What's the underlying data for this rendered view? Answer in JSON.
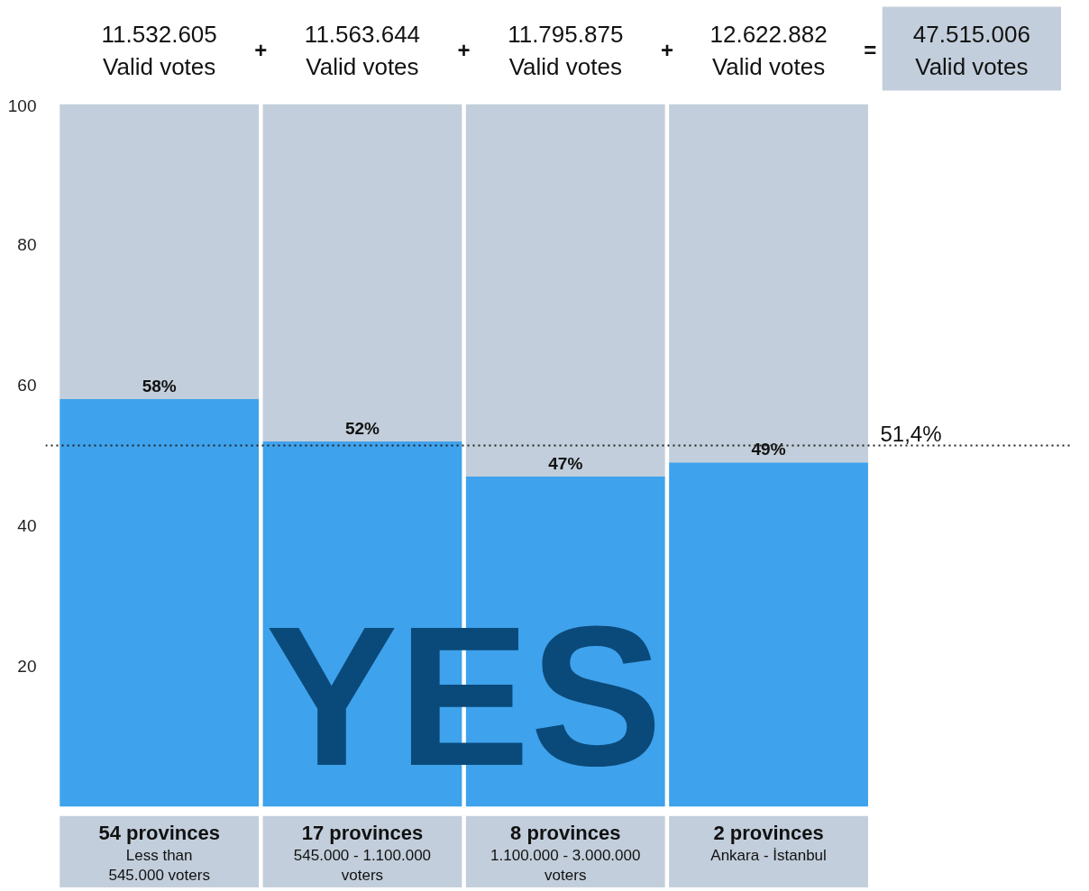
{
  "chart_data": {
    "type": "bar",
    "stacked": true,
    "categories": [
      "54 provinces\nLess than\n545.000 voters",
      "17 provinces\n545.000 - 1.100.000\nvoters",
      "8 provinces\n1.100.000 - 3.000.000\nvoters",
      "2 provinces\nAnkara - İstanbul"
    ],
    "series": [
      {
        "name": "YES",
        "color": "#3fa2ec",
        "values": [
          58,
          52,
          47,
          49
        ],
        "value_labels": [
          "58%",
          "52%",
          "47%",
          "49%"
        ]
      },
      {
        "color": "#c2cedb",
        "values": [
          42,
          48,
          53,
          51
        ]
      }
    ],
    "ylim": [
      0,
      100
    ],
    "yticks": [
      20,
      40,
      60,
      80,
      100
    ],
    "ref_lines": [
      {
        "axis": "y",
        "value": 51.4,
        "label": "51,4%",
        "color": "#222222",
        "line_style": "dotted"
      }
    ],
    "annotations": [
      "11.532.605\nValid votes",
      "+",
      "11.563.644\nValid votes",
      "+",
      "11.795.875\nValid votes",
      "+",
      "12.622.882\nValid votes",
      "=",
      "47.515.006\nValid votes"
    ]
  }
}
